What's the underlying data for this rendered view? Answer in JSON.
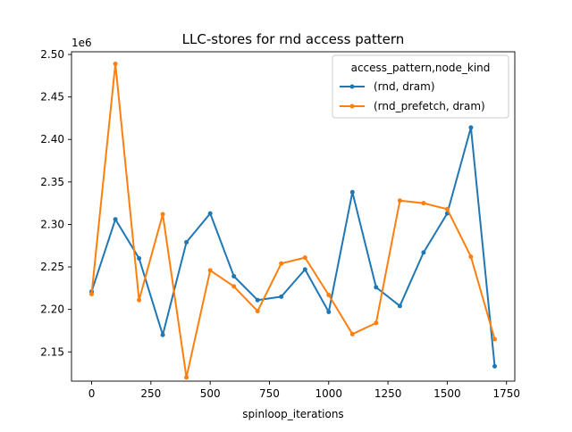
{
  "chart_data": {
    "type": "line",
    "title": "LLC-stores for rnd access pattern",
    "xlabel": "spinloop_iterations",
    "ylabel": "",
    "y_offset_label": "1e6",
    "x_ticks": [
      0,
      250,
      500,
      750,
      1000,
      1250,
      1500,
      1750
    ],
    "x_tick_labels": [
      "0",
      "250",
      "500",
      "750",
      "1000",
      "1250",
      "1500",
      "1750"
    ],
    "y_ticks": [
      2.15,
      2.2,
      2.25,
      2.3,
      2.35,
      2.4,
      2.45,
      2.5
    ],
    "y_tick_labels": [
      "2.15",
      "2.20",
      "2.25",
      "2.30",
      "2.35",
      "2.40",
      "2.45",
      "2.50"
    ],
    "xlim": [
      -85,
      1785
    ],
    "ylim": [
      2.1156,
      2.5032
    ],
    "grid": false,
    "legend": {
      "title": "access_pattern,node_kind",
      "placement": "top-right"
    },
    "x": [
      0,
      100,
      200,
      300,
      400,
      500,
      600,
      700,
      800,
      900,
      1000,
      1100,
      1200,
      1300,
      1400,
      1500,
      1600,
      1700
    ],
    "series": [
      {
        "name": "(rnd, dram)",
        "color": "#1f77b4",
        "values": [
          2.221,
          2.306,
          2.26,
          2.17,
          2.279,
          2.313,
          2.239,
          2.211,
          2.215,
          2.247,
          2.197,
          2.338,
          2.226,
          2.204,
          2.267,
          2.313,
          2.414,
          2.133
        ]
      },
      {
        "name": "(rnd_prefetch, dram)",
        "color": "#ff7f0e",
        "values": [
          2.218,
          2.489,
          2.211,
          2.312,
          2.12,
          2.246,
          2.227,
          2.198,
          2.254,
          2.261,
          2.217,
          2.171,
          2.184,
          2.328,
          2.325,
          2.318,
          2.262,
          2.165
        ]
      }
    ]
  }
}
